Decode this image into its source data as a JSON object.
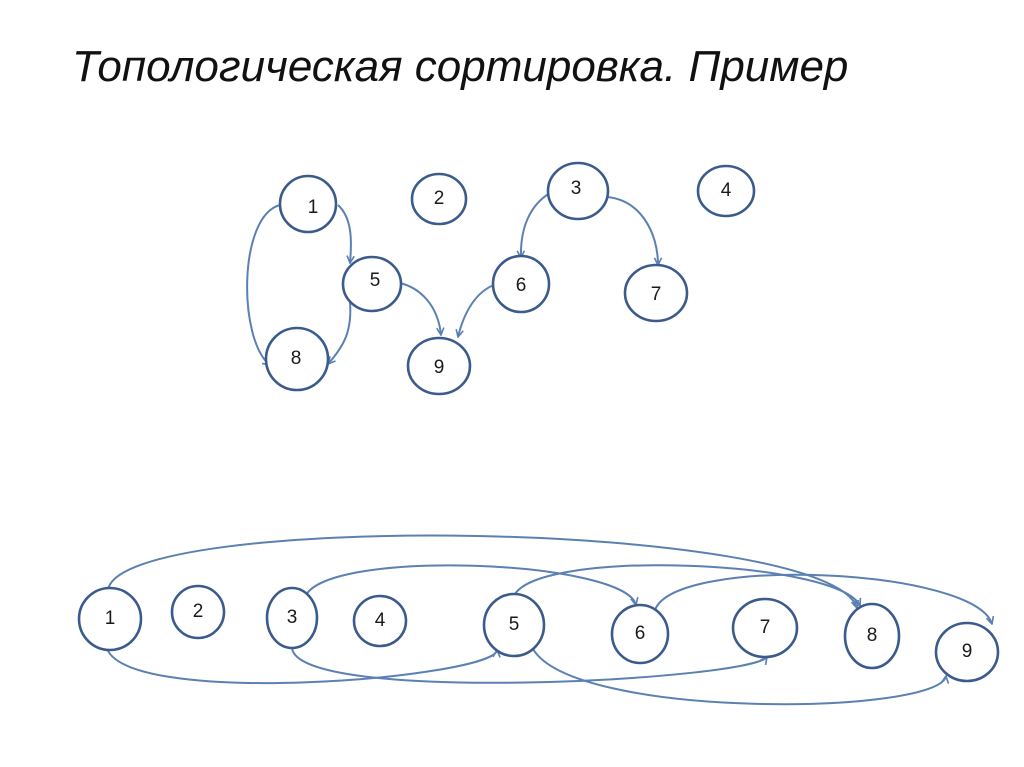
{
  "title": "Топологическая сортировка. Пример",
  "colors": {
    "node_stroke": "#3b5b8c",
    "edge": "#5b80b2",
    "text": "#111111"
  },
  "graph": {
    "nodes": [
      "1",
      "2",
      "3",
      "4",
      "5",
      "6",
      "7",
      "8",
      "9"
    ],
    "edges": [
      [
        "1",
        "5"
      ],
      [
        "1",
        "8"
      ],
      [
        "5",
        "8"
      ],
      [
        "5",
        "9"
      ],
      [
        "6",
        "9"
      ],
      [
        "3",
        "6"
      ],
      [
        "3",
        "7"
      ]
    ]
  },
  "sorted_order": {
    "sequence": [
      "1",
      "2",
      "3",
      "4",
      "5",
      "6",
      "7",
      "8",
      "9"
    ],
    "edges": [
      [
        "1",
        "5"
      ],
      [
        "1",
        "8"
      ],
      [
        "3",
        "6"
      ],
      [
        "3",
        "7"
      ],
      [
        "5",
        "8"
      ],
      [
        "5",
        "9"
      ],
      [
        "6",
        "9"
      ]
    ]
  }
}
